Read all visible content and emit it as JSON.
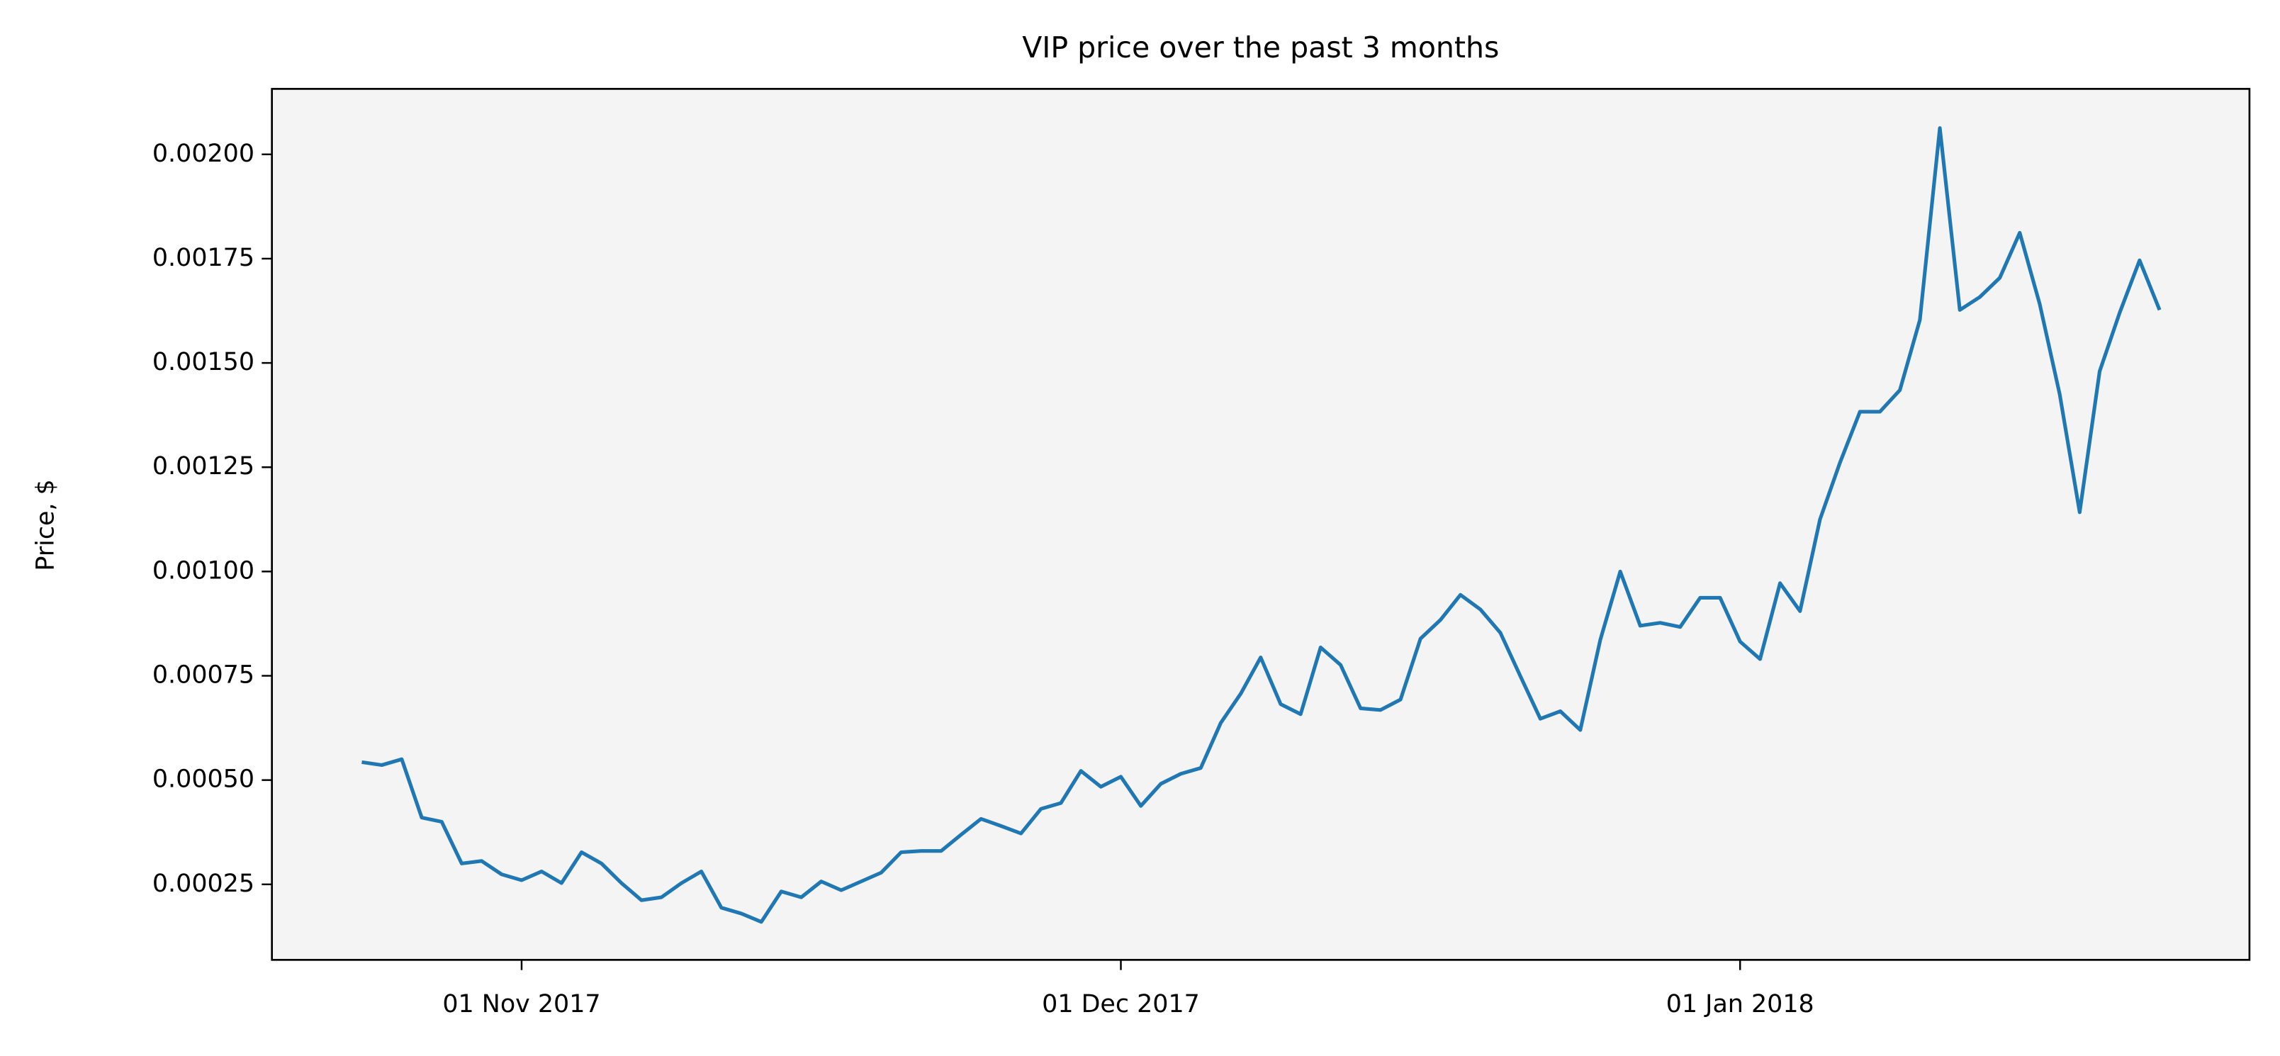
{
  "chart_data": {
    "type": "line",
    "title": "VIP price over the past 3 months",
    "y_label": "Price, $",
    "x": [
      "2017-10-24",
      "2017-10-25",
      "2017-10-26",
      "2017-10-27",
      "2017-10-28",
      "2017-10-29",
      "2017-10-30",
      "2017-10-31",
      "2017-11-01",
      "2017-11-02",
      "2017-11-03",
      "2017-11-04",
      "2017-11-05",
      "2017-11-06",
      "2017-11-07",
      "2017-11-08",
      "2017-11-09",
      "2017-11-10",
      "2017-11-11",
      "2017-11-12",
      "2017-11-13",
      "2017-11-14",
      "2017-11-15",
      "2017-11-16",
      "2017-11-17",
      "2017-11-18",
      "2017-11-19",
      "2017-11-20",
      "2017-11-21",
      "2017-11-22",
      "2017-11-23",
      "2017-11-24",
      "2017-11-25",
      "2017-11-26",
      "2017-11-27",
      "2017-11-28",
      "2017-11-29",
      "2017-11-30",
      "2017-12-01",
      "2017-12-02",
      "2017-12-03",
      "2017-12-04",
      "2017-12-05",
      "2017-12-06",
      "2017-12-07",
      "2017-12-08",
      "2017-12-09",
      "2017-12-10",
      "2017-12-11",
      "2017-12-12",
      "2017-12-13",
      "2017-12-14",
      "2017-12-15",
      "2017-12-16",
      "2017-12-17",
      "2017-12-18",
      "2017-12-19",
      "2017-12-20",
      "2017-12-21",
      "2017-12-22",
      "2017-12-23",
      "2017-12-24",
      "2017-12-25",
      "2017-12-26",
      "2017-12-27",
      "2017-12-28",
      "2017-12-29",
      "2017-12-30",
      "2017-12-31",
      "2018-01-01",
      "2018-01-02",
      "2018-01-03",
      "2018-01-04",
      "2018-01-05",
      "2018-01-06",
      "2018-01-07",
      "2018-01-08",
      "2018-01-09",
      "2018-01-10",
      "2018-01-11",
      "2018-01-12",
      "2018-01-13",
      "2018-01-14",
      "2018-01-15",
      "2018-01-16",
      "2018-01-17",
      "2018-01-18",
      "2018-01-19",
      "2018-01-20",
      "2018-01-21",
      "2018-01-22"
    ],
    "values": [
      0.000543,
      0.000536,
      0.00055,
      0.00041,
      0.0004,
      0.0003,
      0.000306,
      0.000274,
      0.00026,
      0.000281,
      0.000253,
      0.000327,
      0.0003,
      0.000253,
      0.000212,
      0.000219,
      0.000253,
      0.000281,
      0.000194,
      0.00018,
      0.00016,
      0.000233,
      0.000219,
      0.000257,
      0.000236,
      0.000257,
      0.000278,
      0.000327,
      0.00033,
      0.00033,
      0.000369,
      0.000407,
      0.00039,
      0.000372,
      0.000431,
      0.000445,
      0.000522,
      0.000484,
      0.000508,
      0.000438,
      0.000491,
      0.000515,
      0.000529,
      0.000637,
      0.000707,
      0.000794,
      0.000682,
      0.000658,
      0.000818,
      0.000776,
      0.000672,
      0.000668,
      0.000693,
      0.000839,
      0.000884,
      0.000944,
      0.000909,
      0.000853,
      0.000749,
      0.000647,
      0.000665,
      0.00062,
      0.000836,
      0.001,
      0.00087,
      0.000877,
      0.000867,
      0.000937,
      0.000937,
      0.000832,
      0.00079,
      0.000972,
      0.000905,
      0.001125,
      0.001261,
      0.001383,
      0.001383,
      0.001435,
      0.001603,
      0.002063,
      0.001627,
      0.001658,
      0.001704,
      0.001812,
      0.001641,
      0.001425,
      0.001142,
      0.00148,
      0.00162,
      0.001746,
      0.001627
    ],
    "color": "#1f77b4",
    "xlim": [
      "2017-10-19T12:00",
      "2018-01-26T12:00"
    ],
    "xticks": [
      {
        "value": "2017-11-01",
        "label": "01 Nov 2017"
      },
      {
        "value": "2017-12-01",
        "label": "01 Dec 2017"
      },
      {
        "value": "2018-01-01",
        "label": "01 Jan 2018"
      }
    ],
    "ylim": [
      6.9e-05,
      0.002157
    ],
    "yticks": [
      0.00025,
      {
        "value": 0.0005,
        "label": "0.00050"
      },
      0.00075,
      {
        "value": 0.001,
        "label": "0.00100"
      },
      0.00125,
      {
        "value": 0.0015,
        "label": "0.00150"
      },
      0.00175,
      {
        "value": 0.002,
        "label": "0.00200"
      }
    ],
    "grid": false
  }
}
